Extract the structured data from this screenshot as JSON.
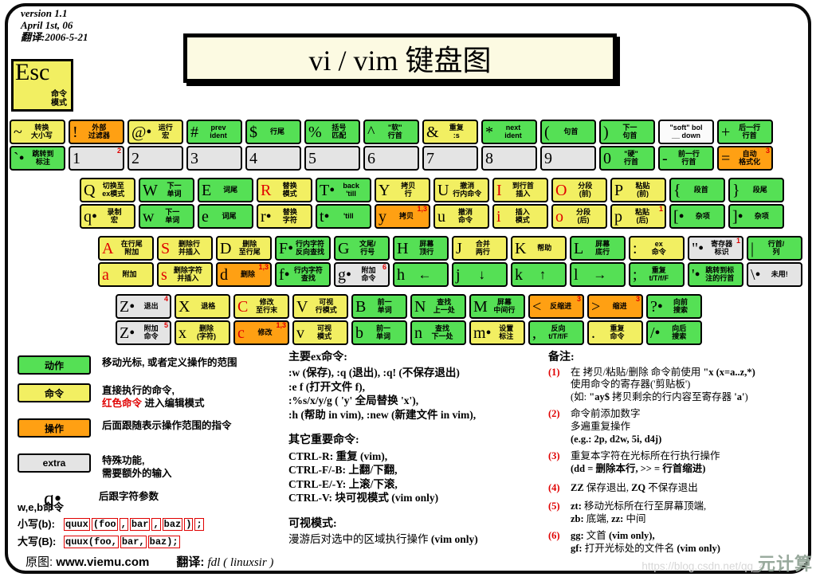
{
  "meta": {
    "version_text": "version 1.1\nApril 1st, 06\n翻译:2006-5-21"
  },
  "title": "vi / vim 键盘图",
  "esc": {
    "char": "Esc",
    "label": "命令\n模式"
  },
  "colors": {
    "green": "#55e055",
    "yellow": "#f2ef62",
    "orange": "#ffa013",
    "gray": "#e4e4e4",
    "white": "#fbfbfb",
    "red": "#e00000"
  },
  "rows": [
    [
      {
        "n": "tilde",
        "t": {
          "c": "~",
          "l": "转换\n大小写",
          "bg": "y"
        },
        "b": {
          "c": "`•",
          "l": "跳转到\n标注",
          "bg": "g"
        }
      },
      {
        "n": "1",
        "t": {
          "c": "!",
          "l": "外部\n过滤器",
          "bg": "o"
        },
        "b": {
          "c": "1",
          "l": "",
          "bg": "x",
          "sup": "2"
        }
      },
      {
        "n": "2",
        "t": {
          "c": "@•",
          "l": "运行\n宏",
          "bg": "y"
        },
        "b": {
          "c": "2",
          "l": "",
          "bg": "x"
        }
      },
      {
        "n": "3",
        "t": {
          "c": "#",
          "l": "prev\nident",
          "bg": "g"
        },
        "b": {
          "c": "3",
          "l": "",
          "bg": "x"
        }
      },
      {
        "n": "4",
        "t": {
          "c": "$",
          "l": "行尾",
          "bg": "g"
        },
        "b": {
          "c": "4",
          "l": "",
          "bg": "x"
        }
      },
      {
        "n": "5",
        "t": {
          "c": "%",
          "l": "括号\n匹配",
          "bg": "g"
        },
        "b": {
          "c": "5",
          "l": "",
          "bg": "x"
        }
      },
      {
        "n": "6",
        "t": {
          "c": "^",
          "l": "\"软\"\n行首",
          "bg": "g"
        },
        "b": {
          "c": "6",
          "l": "",
          "bg": "x"
        }
      },
      {
        "n": "7",
        "t": {
          "c": "&",
          "l": "重复\n:s",
          "bg": "y"
        },
        "b": {
          "c": "7",
          "l": "",
          "bg": "x"
        }
      },
      {
        "n": "8",
        "t": {
          "c": "*",
          "l": "next\nident",
          "bg": "g"
        },
        "b": {
          "c": "8",
          "l": "",
          "bg": "x"
        }
      },
      {
        "n": "9",
        "t": {
          "c": "(",
          "l": "句首",
          "bg": "g"
        },
        "b": {
          "c": "9",
          "l": "",
          "bg": "x"
        }
      },
      {
        "n": "0",
        "t": {
          "c": ")",
          "l": "下一\n句首",
          "bg": "g"
        },
        "b": {
          "c": "0",
          "l": "\"硬\"\n行首",
          "bg": "g"
        }
      },
      {
        "n": "minus",
        "t": {
          "c": "",
          "l": "\"soft\" bol\n__ down",
          "bg": "w"
        },
        "b": {
          "c": "-",
          "l": "前一行\n行首",
          "bg": "g"
        }
      },
      {
        "n": "equals",
        "t": {
          "c": "+",
          "l": "后一行\n行首",
          "bg": "g"
        },
        "b": {
          "c": "=",
          "l": "自动\n格式化",
          "bg": "o",
          "sup": "3"
        }
      }
    ],
    [
      {
        "n": "q",
        "t": {
          "c": "Q",
          "l": "切换至\nex模式",
          "bg": "y"
        },
        "b": {
          "c": "q•",
          "l": "录制\n宏",
          "bg": "y"
        }
      },
      {
        "n": "w",
        "t": {
          "c": "W",
          "l": "下一\n单词",
          "bg": "g"
        },
        "b": {
          "c": "w",
          "l": "下一\n单词",
          "bg": "g"
        }
      },
      {
        "n": "e",
        "t": {
          "c": "E",
          "l": "词尾",
          "bg": "g"
        },
        "b": {
          "c": "e",
          "l": "词尾",
          "bg": "g"
        }
      },
      {
        "n": "r",
        "t": {
          "c": "R",
          "l": "替换\n模式",
          "bg": "y",
          "red": 1
        },
        "b": {
          "c": "r•",
          "l": "替换\n字符",
          "bg": "y"
        }
      },
      {
        "n": "t",
        "t": {
          "c": "T•",
          "l": "back\n'till",
          "bg": "g"
        },
        "b": {
          "c": "t•",
          "l": "'till",
          "bg": "g"
        }
      },
      {
        "n": "y",
        "t": {
          "c": "Y",
          "l": "拷贝\n行",
          "bg": "y"
        },
        "b": {
          "c": "y",
          "l": "拷贝",
          "bg": "o",
          "sup": "1,3"
        }
      },
      {
        "n": "u",
        "t": {
          "c": "U",
          "l": "撤消\n行内命令",
          "bg": "y"
        },
        "b": {
          "c": "u",
          "l": "撤消\n命令",
          "bg": "y"
        }
      },
      {
        "n": "i",
        "t": {
          "c": "I",
          "l": "到行首\n插入",
          "bg": "y",
          "red": 1
        },
        "b": {
          "c": "i",
          "l": "插入\n模式",
          "bg": "y",
          "red": 1
        }
      },
      {
        "n": "o",
        "t": {
          "c": "O",
          "l": "分段\n(前)",
          "bg": "y",
          "red": 1
        },
        "b": {
          "c": "o",
          "l": "分段\n(后)",
          "bg": "y",
          "red": 1
        }
      },
      {
        "n": "p",
        "t": {
          "c": "P",
          "l": "粘贴\n(前)",
          "bg": "y"
        },
        "b": {
          "c": "p",
          "l": "粘贴\n(后)",
          "bg": "y",
          "sup": "1"
        }
      },
      {
        "n": "lbracket",
        "t": {
          "c": "{",
          "l": "段首",
          "bg": "g"
        },
        "b": {
          "c": "[•",
          "l": "杂项",
          "bg": "g"
        }
      },
      {
        "n": "rbracket",
        "t": {
          "c": "}",
          "l": "段尾",
          "bg": "g"
        },
        "b": {
          "c": "]•",
          "l": "杂项",
          "bg": "g"
        }
      }
    ],
    [
      {
        "n": "a",
        "t": {
          "c": "A",
          "l": "在行尾\n附加",
          "bg": "y",
          "red": 1
        },
        "b": {
          "c": "a",
          "l": "附加",
          "bg": "y",
          "red": 1
        }
      },
      {
        "n": "s",
        "t": {
          "c": "S",
          "l": "删除行\n并插入",
          "bg": "y",
          "red": 1
        },
        "b": {
          "c": "s",
          "l": "删除字符\n并插入",
          "bg": "y",
          "red": 1
        }
      },
      {
        "n": "d",
        "t": {
          "c": "D",
          "l": "删除\n至行尾",
          "bg": "y"
        },
        "b": {
          "c": "d",
          "l": "删除",
          "bg": "o",
          "sup": "1,3"
        }
      },
      {
        "n": "f",
        "t": {
          "c": "F•",
          "l": "行内字符\n反向查找",
          "bg": "g"
        },
        "b": {
          "c": "f•",
          "l": "行内字符\n查找",
          "bg": "g"
        }
      },
      {
        "n": "g",
        "t": {
          "c": "G",
          "l": "文尾/\n行号",
          "bg": "g"
        },
        "b": {
          "c": "g•",
          "l": "附加\n命令",
          "bg": "x",
          "sup": "6"
        }
      },
      {
        "n": "h",
        "t": {
          "c": "H",
          "l": "屏幕\n顶行",
          "bg": "g"
        },
        "b": {
          "c": "h",
          "l": "←",
          "bg": "g",
          "big": 1
        }
      },
      {
        "n": "j",
        "t": {
          "c": "J",
          "l": "合并\n两行",
          "bg": "y"
        },
        "b": {
          "c": "j",
          "l": "↓",
          "bg": "g",
          "big": 1
        }
      },
      {
        "n": "k",
        "t": {
          "c": "K",
          "l": "帮助",
          "bg": "y"
        },
        "b": {
          "c": "k",
          "l": "↑",
          "bg": "g",
          "big": 1
        }
      },
      {
        "n": "l",
        "t": {
          "c": "L",
          "l": "屏幕\n底行",
          "bg": "g"
        },
        "b": {
          "c": "l",
          "l": "→",
          "bg": "g",
          "big": 1
        }
      },
      {
        "n": "semicolon",
        "t": {
          "c": ":",
          "l": "ex\n命令",
          "bg": "y"
        },
        "b": {
          "c": ";",
          "l": "重复\nt/T/f/F",
          "bg": "g"
        }
      },
      {
        "n": "quote",
        "t": {
          "c": "\"•",
          "l": "寄存器\n标识",
          "bg": "x",
          "sup": "1"
        },
        "b": {
          "c": "'•",
          "l": "跳转到标\n注的行首",
          "bg": "g"
        }
      },
      {
        "n": "backslash",
        "t": {
          "c": "|",
          "l": "行首/\n列",
          "bg": "g"
        },
        "b": {
          "c": "\\•",
          "l": "未用!",
          "bg": "x"
        }
      }
    ],
    [
      {
        "n": "z",
        "t": {
          "c": "Z•",
          "l": "退出",
          "bg": "x",
          "sup": "4"
        },
        "b": {
          "c": "Z•",
          "l": "附加\n命令",
          "bg": "x",
          "sup": "5"
        }
      },
      {
        "n": "x",
        "t": {
          "c": "X",
          "l": "退格",
          "bg": "y"
        },
        "b": {
          "c": "x",
          "l": "删除\n(字符)",
          "bg": "y"
        }
      },
      {
        "n": "c",
        "t": {
          "c": "C",
          "l": "修改\n至行末",
          "bg": "y",
          "red": 1
        },
        "b": {
          "c": "c",
          "l": "修改",
          "bg": "o",
          "red": 1,
          "sup": "1,3"
        }
      },
      {
        "n": "v",
        "t": {
          "c": "V",
          "l": "可视\n行模式",
          "bg": "y"
        },
        "b": {
          "c": "v",
          "l": "可视\n模式",
          "bg": "y"
        }
      },
      {
        "n": "b",
        "t": {
          "c": "B",
          "l": "前一\n单词",
          "bg": "g"
        },
        "b": {
          "c": "b",
          "l": "前一\n单词",
          "bg": "g"
        }
      },
      {
        "n": "n",
        "t": {
          "c": "N",
          "l": "查找\n上一处",
          "bg": "g"
        },
        "b": {
          "c": "n",
          "l": "查找\n下一处",
          "bg": "g"
        }
      },
      {
        "n": "m",
        "t": {
          "c": "M",
          "l": "屏幕\n中间行",
          "bg": "g"
        },
        "b": {
          "c": "m•",
          "l": "设置\n标注",
          "bg": "y"
        }
      },
      {
        "n": "comma",
        "t": {
          "c": "<",
          "l": "反缩进",
          "bg": "o",
          "sup": "3"
        },
        "b": {
          "c": ",",
          "l": "反向\nt/T/f/F",
          "bg": "g"
        }
      },
      {
        "n": "period",
        "t": {
          "c": ">",
          "l": "缩进",
          "bg": "o",
          "sup": "3"
        },
        "b": {
          "c": ".",
          "l": "重复\n命令",
          "bg": "y"
        }
      },
      {
        "n": "slash",
        "t": {
          "c": "?•",
          "l": "向前\n搜索",
          "bg": "g"
        },
        "b": {
          "c": "/•",
          "l": "向后\n搜索",
          "bg": "g"
        }
      }
    ]
  ],
  "legend": {
    "items": [
      {
        "swatch": "动作",
        "bg": "g",
        "text": "移动光标, 或者定义操作的范围"
      },
      {
        "swatch": "命令",
        "bg": "y",
        "text1": "直接执行的命令,",
        "red": "红色命令",
        "text2": " 进入编辑模式"
      },
      {
        "swatch": "操作",
        "bg": "o",
        "text": "后面跟随表示操作范围的指令"
      },
      {
        "swatch": "extra",
        "bg": "x",
        "text": "特殊功能,\n需要额外的输入"
      },
      {
        "glyph": "q•",
        "text": "后跟字符参数"
      }
    ]
  },
  "web": {
    "head": "w,e,b命令",
    "rows": [
      {
        "label": "小写(b):",
        "segs": [
          "quux",
          "(foo",
          ",",
          "bar",
          ",",
          "baz",
          ")",
          ";"
        ]
      },
      {
        "label": "大写(B):",
        "segs": [
          "quux(foo,",
          "bar,",
          "baz);"
        ]
      }
    ]
  },
  "ex_sections": [
    {
      "head": "主要ex命令:",
      "lines": [
        {
          "t": ":w (保存), :q (退出), :q! (不保存退出)",
          "b": 1
        },
        {
          "t": ":e f (打开文件 f),",
          "b": 1
        },
        {
          "t": ":%s/x/y/g ( 'y' 全局替换 'x'),",
          "b": 1
        },
        {
          "t": ":h (帮助 in vim), :new (新建文件 in vim),",
          "b": 1
        }
      ]
    },
    {
      "head": "其它重要命令:",
      "lines": [
        {
          "t": "CTRL-R: 重复 (vim),",
          "b": 1
        },
        {
          "t": "CTRL-F/-B: 上翻/下翻,",
          "b": 1
        },
        {
          "t": "CTRL-E/-Y: 上滚/下滚,",
          "b": 1
        },
        {
          "t": "CTRL-V: 块可视模式 (vim only)",
          "b": 1
        }
      ]
    },
    {
      "head": "可视模式:",
      "lines": [
        {
          "t": "漫游后对选中的区域执行操作 **(vim only)**",
          "b": 0
        }
      ]
    }
  ],
  "notes": {
    "head": "备注:",
    "items": [
      {
        "num": "(1)",
        "lines": [
          "在 拷贝/粘贴/删除 命令前使用 **\"x (x=a..z,*)**",
          "使用命令的寄存器('剪贴板')",
          "(如: **\"ay$** 拷贝剩余的行内容至寄存器 **'a'**)"
        ]
      },
      {
        "num": "(2)",
        "lines": [
          "命令前添加数字",
          "多遍重复操作",
          "**(e.g.: 2p, d2w, 5i, d4j)**"
        ]
      },
      {
        "num": "(3)",
        "lines": [
          "重复本字符在光标所在行执行操作",
          "**(dd = 删除本行, >> = 行首缩进)**"
        ]
      },
      {
        "num": "(4)",
        "lines": [
          "**ZZ** 保存退出, **ZQ** 不保存退出"
        ]
      },
      {
        "num": "(5)",
        "lines": [
          "**zt:** 移动光标所在行至屏幕顶端,",
          "**zb:** 底端, **zz:** 中间"
        ]
      },
      {
        "num": "(6)",
        "lines": [
          "**gg:** 文首 **(vim only),**",
          "**gf:** 打开光标处的文件名 **(vim only)**"
        ]
      }
    ]
  },
  "footer": {
    "orig_label": "原图:",
    "site": "www.viemu.com",
    "trans_label": "翻译:",
    "trans_value": "fdl ( linuxsir )"
  },
  "watermark": {
    "url": "https://blog.csdn.net/qq_4",
    "logo": "元计算"
  }
}
